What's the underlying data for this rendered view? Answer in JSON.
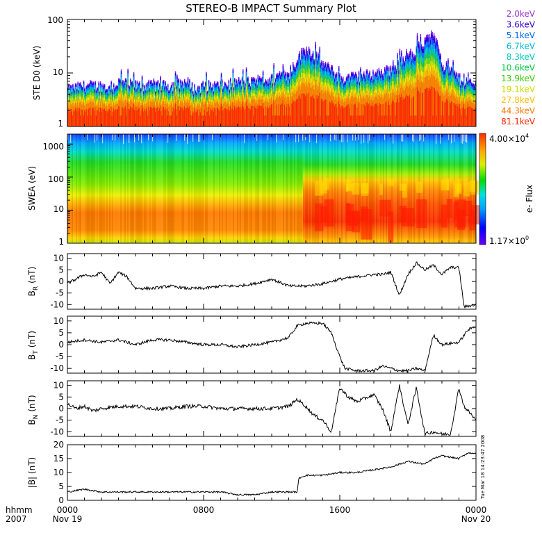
{
  "title": "STEREO-B IMPACT Summary Plot",
  "time_axis": {
    "ticks": [
      {
        "hour": 0,
        "label": "0000",
        "sub": "Nov 19"
      },
      {
        "hour": 8,
        "label": "0800",
        "sub": ""
      },
      {
        "hour": 16,
        "label": "1600",
        "sub": ""
      },
      {
        "hour": 24,
        "label": "0000",
        "sub": "Nov 20"
      }
    ],
    "format_label": "hhmm",
    "year_label": "2007",
    "range_hours": [
      0,
      24
    ]
  },
  "timestamp": "Tue Mar 18 14:23:47 2008",
  "colorbar": {
    "max_label": "4.00×10",
    "max_exp": "4",
    "min_label": "1.17×10",
    "min_exp": "0",
    "title": "e- Flux"
  },
  "panels": {
    "ste": {
      "ylabel": "STE D0 (keV)",
      "ticks": [
        "100",
        "10",
        "1"
      ]
    },
    "swea": {
      "ylabel": "SWEA (eV)",
      "ticks": [
        "1000",
        "100",
        "10",
        "1"
      ]
    },
    "br": {
      "ylabel": "B",
      "ylabel_sub": "R",
      "ylabel_unit": "(nT)"
    },
    "bt": {
      "ylabel": "B",
      "ylabel_sub": "T",
      "ylabel_unit": "(nT)"
    },
    "bn": {
      "ylabel": "B",
      "ylabel_sub": "N",
      "ylabel_unit": "(nT)"
    },
    "bmag": {
      "ylabel": "|B| (nT)"
    }
  },
  "energy_legend": [
    {
      "label": "2.0keV",
      "color": "#9933cc"
    },
    {
      "label": "3.6keV",
      "color": "#3300cc"
    },
    {
      "label": "5.1keV",
      "color": "#0066ff"
    },
    {
      "label": "6.7keV",
      "color": "#00bbdd"
    },
    {
      "label": "8.3keV",
      "color": "#00ccbb"
    },
    {
      "label": "10.6keV",
      "color": "#00cc44"
    },
    {
      "label": "13.9keV",
      "color": "#33cc00"
    },
    {
      "label": "19.1keV",
      "color": "#ccdd00"
    },
    {
      "label": "27.8keV",
      "color": "#ffbb00"
    },
    {
      "label": "44.3keV",
      "color": "#ff7700"
    },
    {
      "label": "81.1keV",
      "color": "#ff2200"
    }
  ],
  "chart_data": [
    {
      "type": "area",
      "name": "STE D0 electron flux (stacked energy channels)",
      "ylabel": "STE D0 (keV)",
      "yscale": "log",
      "ylim": [
        1,
        100
      ],
      "x_hours": [
        0,
        1,
        2,
        2.5,
        3,
        4,
        5,
        6,
        7,
        7.5,
        8,
        9,
        10,
        11,
        12,
        12.5,
        13,
        14,
        15,
        16,
        17,
        18,
        19,
        20,
        20.5,
        21,
        21.5,
        22,
        23,
        24
      ],
      "top_envelope": [
        5,
        6,
        6,
        5,
        7,
        6,
        6,
        6,
        7,
        5,
        6,
        6,
        7,
        7,
        8,
        10,
        9,
        30,
        15,
        8,
        9,
        10,
        12,
        20,
        30,
        40,
        55,
        15,
        8,
        6
      ]
    },
    {
      "type": "heatmap",
      "name": "SWEA",
      "ylabel": "SWEA (eV)",
      "yscale": "log",
      "ylim": [
        1,
        2000
      ],
      "colorbar_range": [
        1.17,
        40000
      ],
      "colorbar_label": "e- Flux"
    },
    {
      "type": "line",
      "name": "BR",
      "ylabel": "BR (nT)",
      "ylim": [
        -12,
        12
      ],
      "yticks": [
        10,
        5,
        0,
        -5,
        -10
      ],
      "x_hours": [
        0,
        0.5,
        1,
        1.5,
        2,
        2.5,
        3,
        3.5,
        4,
        5,
        6,
        7,
        8,
        9,
        10,
        11,
        12,
        13,
        14,
        15,
        16,
        17,
        18,
        18.5,
        19,
        19.5,
        20,
        20.5,
        21,
        21.5,
        22,
        22.5,
        23,
        23.3,
        24
      ],
      "values": [
        -1,
        1,
        3,
        2,
        4,
        -1,
        4,
        2,
        -3,
        -3,
        -2,
        -3,
        -3,
        -2,
        -2,
        -1,
        1,
        -2,
        -2,
        -1,
        1,
        2,
        3,
        3,
        4,
        -6,
        3,
        8,
        5,
        7,
        3,
        6,
        6,
        -11,
        -10
      ]
    },
    {
      "type": "line",
      "name": "BT",
      "ylabel": "BT (nT)",
      "ylim": [
        -12,
        12
      ],
      "yticks": [
        10,
        5,
        0,
        -5,
        -10
      ],
      "x_hours": [
        0,
        1,
        2,
        3,
        4,
        5,
        6,
        7,
        8,
        9,
        10,
        11,
        12,
        13,
        13.5,
        14,
        15,
        15.5,
        16,
        16.3,
        17,
        18,
        18.5,
        19,
        19.5,
        20,
        20.5,
        21,
        21.5,
        22,
        23,
        23.5,
        24
      ],
      "values": [
        1,
        2,
        1,
        2,
        0,
        2,
        2,
        1,
        0,
        0,
        -1,
        0,
        1,
        3,
        8,
        9,
        9,
        5,
        -5,
        -10,
        -11,
        -11,
        -9,
        -10,
        -11,
        -11,
        -10,
        -11,
        4,
        0,
        1,
        6,
        8
      ]
    },
    {
      "type": "line",
      "name": "BN",
      "ylabel": "BN (nT)",
      "ylim": [
        -12,
        12
      ],
      "yticks": [
        10,
        5,
        0,
        -5,
        -10
      ],
      "x_hours": [
        0,
        0.5,
        1,
        1.5,
        2,
        3,
        4,
        5,
        6,
        7,
        8,
        9,
        10,
        11,
        12,
        13,
        13.5,
        14,
        14.5,
        15,
        15.5,
        16,
        16.5,
        17,
        18,
        18.5,
        19,
        19.5,
        20,
        20.5,
        21,
        21.5,
        22,
        22.5,
        23,
        23.3,
        24
      ],
      "values": [
        2,
        0,
        1,
        -1,
        0,
        1,
        1,
        0,
        0,
        1,
        1,
        0,
        0,
        0,
        0,
        1,
        4,
        1,
        -3,
        -5,
        -10,
        9,
        5,
        3,
        6,
        0,
        -10,
        10,
        -7,
        9,
        -11,
        -10,
        -11,
        -11,
        9,
        1,
        -5
      ]
    },
    {
      "type": "line",
      "name": "|B|",
      "ylabel": "|B| (nT)",
      "ylim": [
        0,
        20
      ],
      "yticks": [
        20,
        15,
        10,
        5,
        0
      ],
      "x_hours": [
        0,
        1,
        2,
        3,
        4,
        5,
        6,
        7,
        8,
        9,
        10,
        11,
        12,
        13,
        13.5,
        13.6,
        14,
        15,
        16,
        17,
        18,
        19,
        20,
        21,
        21.5,
        22,
        23,
        23.5,
        24
      ],
      "values": [
        3,
        4,
        3,
        3,
        3,
        3,
        3,
        3,
        3,
        3,
        2,
        2,
        3,
        3,
        3,
        8,
        9,
        9,
        10,
        10,
        11,
        12,
        14,
        13,
        15,
        16,
        15,
        17,
        17
      ]
    }
  ]
}
